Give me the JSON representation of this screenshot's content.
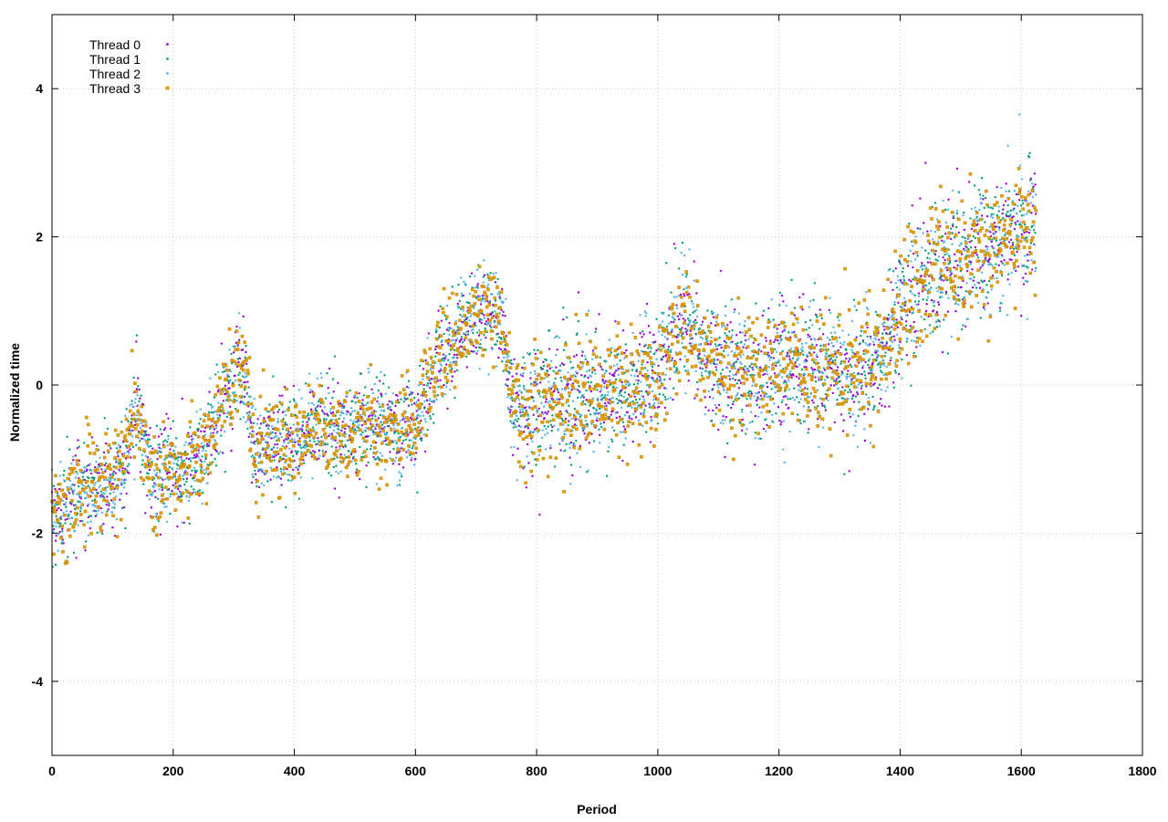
{
  "chart_data": {
    "type": "scatter",
    "title": "",
    "xlabel": "Period",
    "ylabel": "Normalized time",
    "xlim": [
      0,
      1800
    ],
    "ylim": [
      -5,
      5
    ],
    "xticks": [
      0,
      200,
      400,
      600,
      800,
      1000,
      1200,
      1400,
      1600,
      1800
    ],
    "yticks": [
      -4,
      -2,
      0,
      2,
      4
    ],
    "grid": true,
    "legend_position": "top-left",
    "n_points": 1625,
    "trend": {
      "x": [
        0,
        10,
        20,
        30,
        40,
        50,
        60,
        70,
        80,
        90,
        100,
        110,
        120,
        130,
        140,
        150,
        160,
        170,
        180,
        190,
        200,
        210,
        220,
        230,
        240,
        250,
        260,
        270,
        280,
        290,
        300,
        310,
        320,
        330,
        340,
        350,
        360,
        380,
        400,
        420,
        440,
        460,
        480,
        500,
        520,
        540,
        560,
        580,
        600,
        620,
        640,
        660,
        680,
        700,
        720,
        740,
        760,
        780,
        800,
        850,
        900,
        950,
        1000,
        1020,
        1040,
        1060,
        1080,
        1100,
        1150,
        1200,
        1250,
        1300,
        1350,
        1380,
        1400,
        1450,
        1500,
        1550,
        1600,
        1625
      ],
      "y": [
        -1.8,
        -1.7,
        -1.6,
        -1.5,
        -1.45,
        -1.35,
        -1.4,
        -1.45,
        -1.35,
        -1.3,
        -1.3,
        -1.2,
        -1.0,
        -0.7,
        -0.2,
        -0.9,
        -1.2,
        -1.3,
        -1.2,
        -1.0,
        -1.1,
        -1.2,
        -1.1,
        -1.1,
        -1.0,
        -0.9,
        -0.7,
        -0.5,
        -0.3,
        -0.1,
        0.0,
        0.1,
        0.2,
        -0.8,
        -0.9,
        -0.85,
        -0.8,
        -0.75,
        -0.7,
        -0.65,
        -0.6,
        -0.5,
        -0.7,
        -0.6,
        -0.55,
        -0.6,
        -0.6,
        -0.6,
        -0.55,
        -0.1,
        0.3,
        0.6,
        0.8,
        0.95,
        1.0,
        0.9,
        -0.3,
        -0.25,
        -0.2,
        -0.15,
        -0.15,
        -0.1,
        0.1,
        0.5,
        0.9,
        0.7,
        0.4,
        0.2,
        0.1,
        0.2,
        0.3,
        0.1,
        0.3,
        0.6,
        1.0,
        1.5,
        1.7,
        1.9,
        2.1,
        2.2
      ],
      "spread": 0.33
    },
    "series": [
      {
        "name": "Thread 0",
        "color": "#9400d3",
        "marker": "dot"
      },
      {
        "name": "Thread 1",
        "color": "#009e73",
        "marker": "dot"
      },
      {
        "name": "Thread 2",
        "color": "#56b4e9",
        "marker": "dot"
      },
      {
        "name": "Thread 3",
        "color": "#e69f00",
        "marker": "square"
      }
    ]
  }
}
